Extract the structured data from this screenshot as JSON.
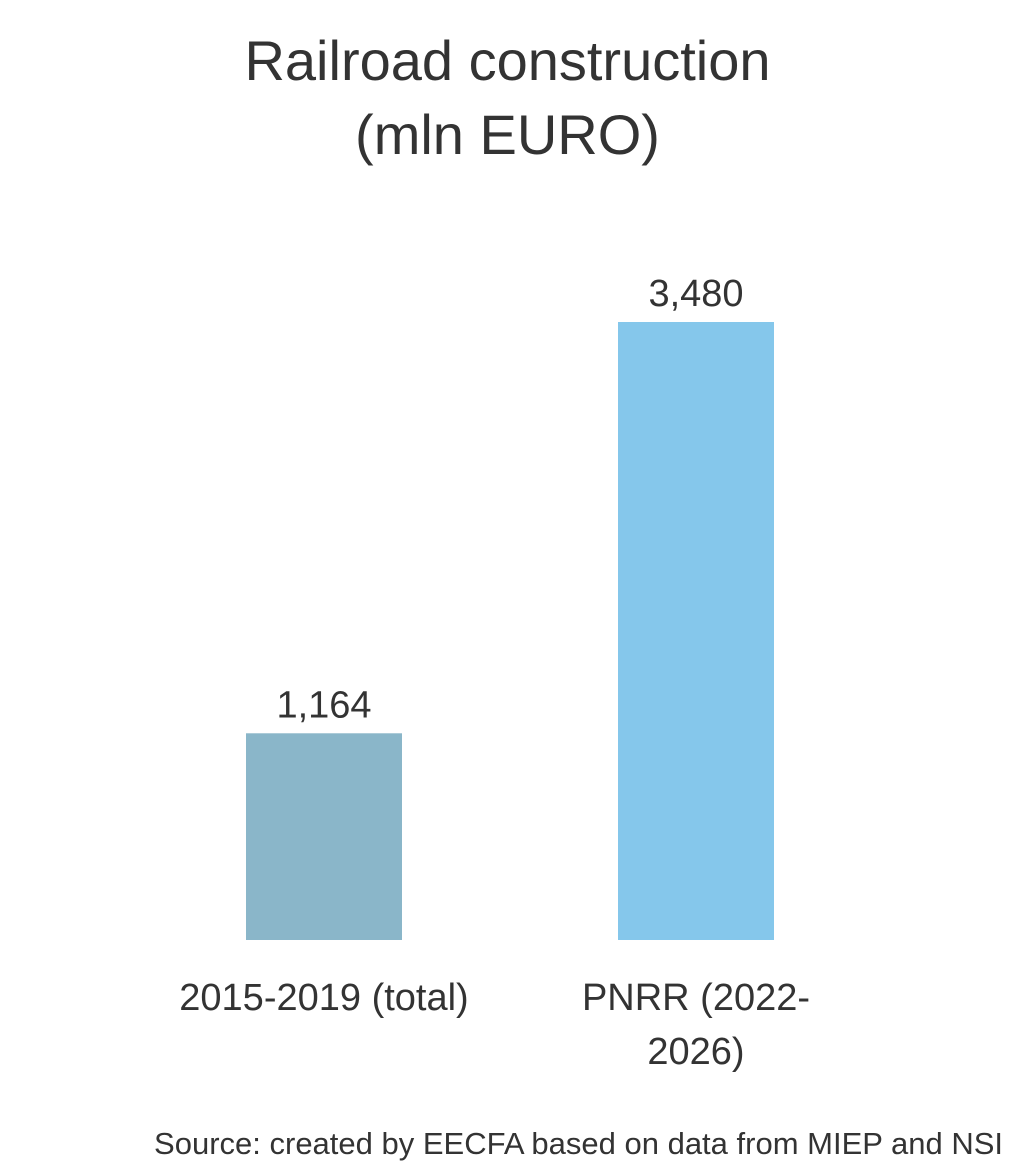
{
  "chart_data": {
    "type": "bar",
    "title_lines": [
      "Railroad construction",
      "(mln EURO)"
    ],
    "categories": [
      "2015-2019 (total)",
      "PNRR (2022-2026)"
    ],
    "category_label_lines": [
      [
        "2015-2019 (total)"
      ],
      [
        "PNRR (2022-",
        "2026)"
      ]
    ],
    "values": [
      1164,
      3480
    ],
    "value_labels": [
      "1,164",
      "3,480"
    ],
    "bar_colors": [
      "#8AB6C9",
      "#85C7EB"
    ],
    "xlabel": "",
    "ylabel": "",
    "ylim": [
      0,
      3480
    ],
    "grid": false,
    "legend": "none"
  },
  "source": "Source: created by EECFA based on data from MIEP and NSI"
}
